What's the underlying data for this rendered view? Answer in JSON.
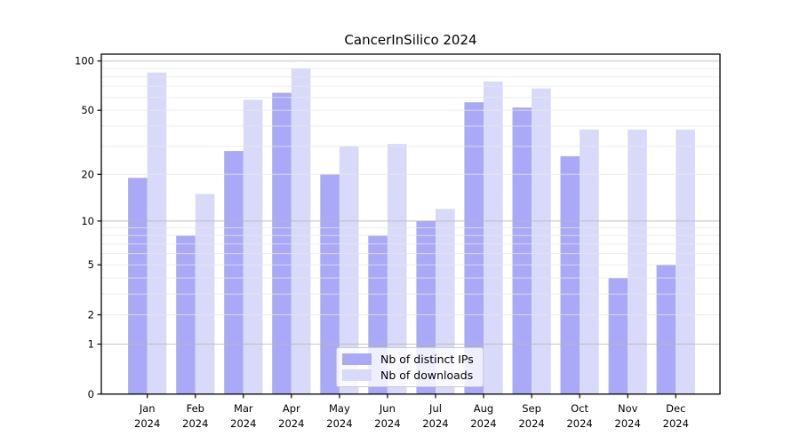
{
  "chart": {
    "colors": {
      "background": "#ffffff",
      "ips_bar": "#a9a9f7",
      "downloads_bar": "#d9d9f9",
      "grid_minor": "#e7e7e7",
      "grid_major": "#b9b9b9",
      "spine": "#000000",
      "text": "#000000",
      "legend_border": "#cccccc"
    }
  },
  "chart_data": {
    "type": "bar",
    "title": "CancerInSilico 2024",
    "categories": [
      {
        "month": "Jan",
        "year": "2024"
      },
      {
        "month": "Feb",
        "year": "2024"
      },
      {
        "month": "Mar",
        "year": "2024"
      },
      {
        "month": "Apr",
        "year": "2024"
      },
      {
        "month": "May",
        "year": "2024"
      },
      {
        "month": "Jun",
        "year": "2024"
      },
      {
        "month": "Jul",
        "year": "2024"
      },
      {
        "month": "Aug",
        "year": "2024"
      },
      {
        "month": "Sep",
        "year": "2024"
      },
      {
        "month": "Oct",
        "year": "2024"
      },
      {
        "month": "Nov",
        "year": "2024"
      },
      {
        "month": "Dec",
        "year": "2024"
      }
    ],
    "series": [
      {
        "name": "Nb of distinct IPs",
        "color_key": "ips_bar",
        "values": [
          19,
          8,
          28,
          64,
          20,
          8,
          10,
          56,
          52,
          26,
          4,
          5
        ]
      },
      {
        "name": "Nb of downloads",
        "color_key": "downloads_bar",
        "values": [
          85,
          15,
          58,
          90,
          30,
          31,
          12,
          75,
          68,
          38,
          38,
          38
        ]
      }
    ],
    "yscale": "log1p",
    "yticks": [
      0,
      1,
      2,
      5,
      10,
      20,
      50,
      100
    ],
    "ylim": [
      0,
      110
    ],
    "grid": true,
    "legend_position": "lower center"
  }
}
